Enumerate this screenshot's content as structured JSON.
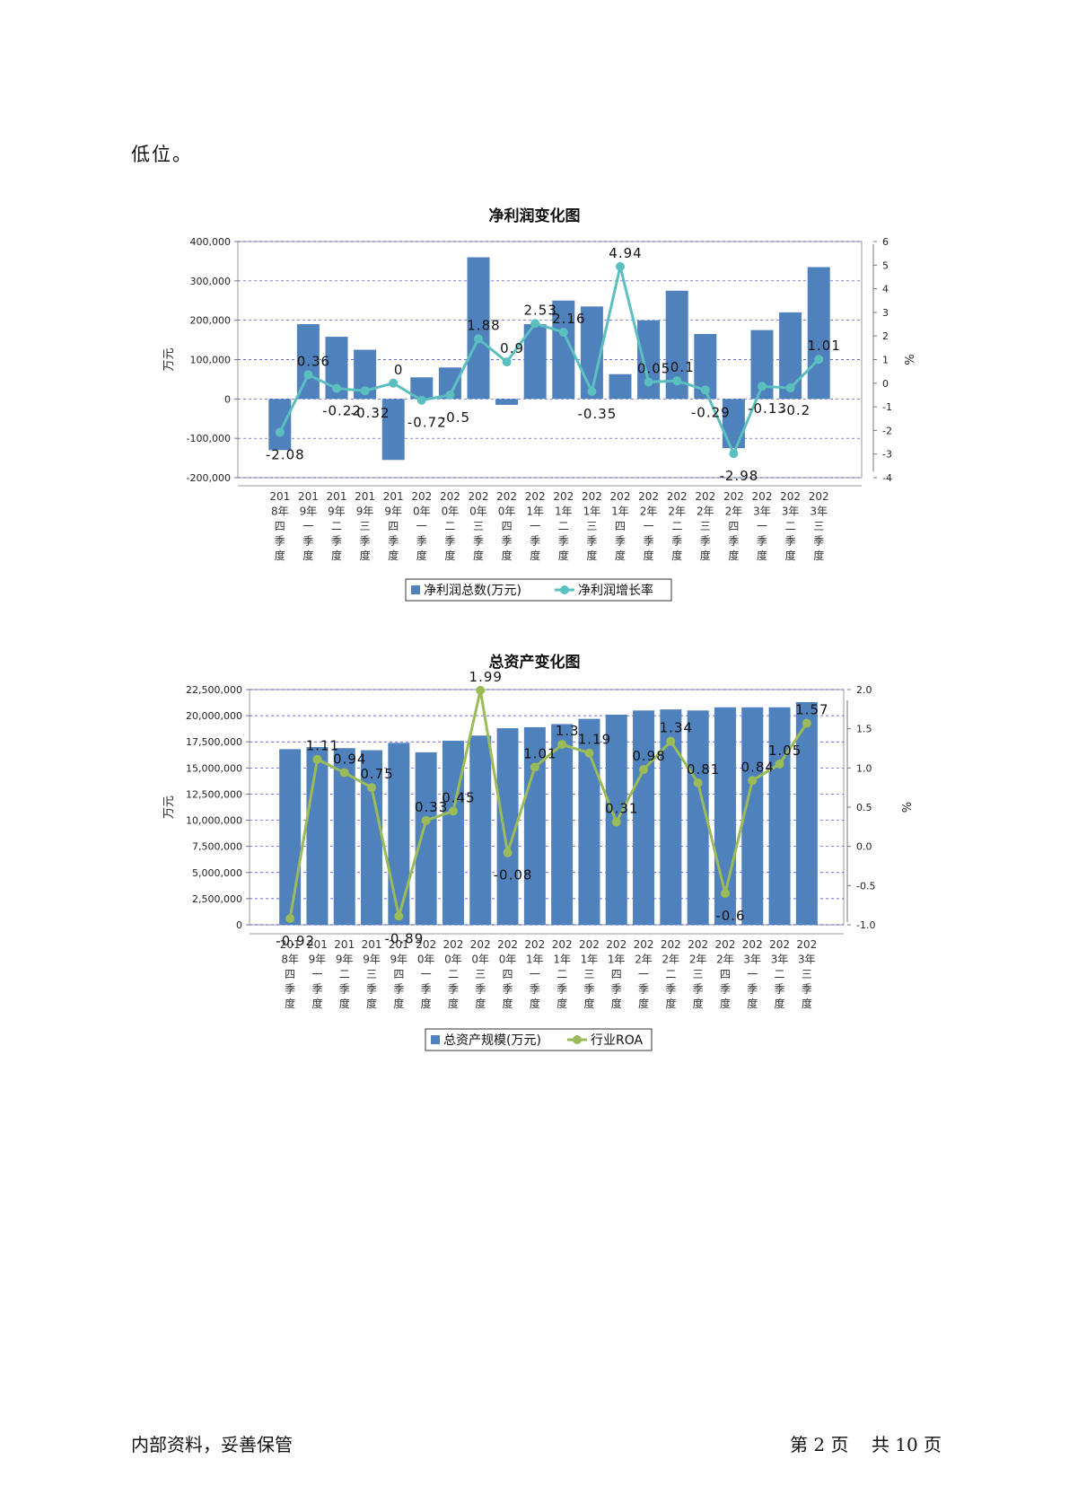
{
  "intro_text": "低位。",
  "footer": {
    "left": "内部资料，妥善保管",
    "page_label": "第 2 页",
    "total_label": "共 10 页"
  },
  "colors": {
    "bar": "#4f81bd",
    "line1": "#5bbfbf",
    "line2": "#9bbb59",
    "grid": "#3b3bd6"
  },
  "chart_data": [
    {
      "type": "bar",
      "title": "净利润变化图",
      "categories": [
        "2018年四季度",
        "2019年一季度",
        "2019年二季度",
        "2019年三季度",
        "2019年四季度",
        "2020年一季度",
        "2020年二季度",
        "2020年三季度",
        "2020年四季度",
        "2021年一季度",
        "2021年二季度",
        "2021年三季度",
        "2021年四季度",
        "2022年一季度",
        "2022年二季度",
        "2022年三季度",
        "2022年四季度",
        "2023年一季度",
        "2023年二季度",
        "2023年三季度"
      ],
      "tick_lines": [
        [
          "201",
          "8年",
          "四",
          "季",
          "度"
        ],
        [
          "201",
          "9年",
          "一",
          "季",
          "度"
        ],
        [
          "201",
          "9年",
          "二",
          "季",
          "度"
        ],
        [
          "201",
          "9年",
          "三",
          "季",
          "度"
        ],
        [
          "201",
          "9年",
          "四",
          "季",
          "度"
        ],
        [
          "202",
          "0年",
          "一",
          "季",
          "度"
        ],
        [
          "202",
          "0年",
          "二",
          "季",
          "度"
        ],
        [
          "202",
          "0年",
          "三",
          "季",
          "度"
        ],
        [
          "202",
          "0年",
          "四",
          "季",
          "度"
        ],
        [
          "202",
          "1年",
          "一",
          "季",
          "度"
        ],
        [
          "202",
          "1年",
          "二",
          "季",
          "度"
        ],
        [
          "202",
          "1年",
          "三",
          "季",
          "度"
        ],
        [
          "202",
          "1年",
          "四",
          "季",
          "度"
        ],
        [
          "202",
          "2年",
          "一",
          "季",
          "度"
        ],
        [
          "202",
          "2年",
          "二",
          "季",
          "度"
        ],
        [
          "202",
          "2年",
          "三",
          "季",
          "度"
        ],
        [
          "202",
          "2年",
          "四",
          "季",
          "度"
        ],
        [
          "202",
          "3年",
          "一",
          "季",
          "度"
        ],
        [
          "202",
          "3年",
          "二",
          "季",
          "度"
        ],
        [
          "202",
          "3年",
          "三",
          "季",
          "度"
        ]
      ],
      "series": [
        {
          "name": "净利润总数(万元)",
          "kind": "bar",
          "axis": "left",
          "values": [
            -130000,
            190000,
            158000,
            125000,
            -155000,
            55000,
            80000,
            360000,
            -15000,
            190000,
            250000,
            235000,
            63000,
            200000,
            275000,
            165000,
            -125000,
            175000,
            220000,
            335000
          ]
        },
        {
          "name": "净利润增长率",
          "kind": "line",
          "axis": "right",
          "values": [
            -2.08,
            0.36,
            -0.22,
            -0.32,
            0,
            -0.72,
            -0.5,
            1.88,
            0.9,
            2.53,
            2.16,
            -0.35,
            4.94,
            0.05,
            0.1,
            -0.29,
            -2.98,
            -0.13,
            -0.2,
            1.01
          ],
          "labels": [
            "-2.08",
            "0.36",
            "-0.22",
            "-0.32",
            "0",
            "-0.72",
            "-0.5",
            "1.88",
            "0.9",
            "2.53",
            "2.16",
            "-0.35",
            "4.94",
            "0.05",
            "0.1",
            "-0.29",
            "-2.98",
            "-0.13",
            "-0.2",
            "1.01"
          ]
        }
      ],
      "ylabel": "万元",
      "y2label": "%",
      "ylim": [
        -200000,
        400000
      ],
      "yticks": [
        -200000,
        -100000,
        0,
        100000,
        200000,
        300000,
        400000
      ],
      "ytick_labels": [
        "-200,000",
        "-100,000",
        "0",
        "100,000",
        "200,000",
        "300,000",
        "400,000"
      ],
      "y2lim": [
        -4,
        6
      ],
      "y2ticks": [
        -4,
        -3,
        -2,
        -1,
        0,
        1,
        2,
        3,
        4,
        5,
        6
      ],
      "y2tick_labels": [
        "-4",
        "-3",
        "-2",
        "-1",
        "0",
        "1",
        "2",
        "3",
        "4",
        "5",
        "6"
      ],
      "grid": true,
      "legend": "bottom-center"
    },
    {
      "type": "bar",
      "title": "总资产变化图",
      "categories": [
        "2018年四季度",
        "2019年一季度",
        "2019年二季度",
        "2019年三季度",
        "2019年四季度",
        "2020年一季度",
        "2020年二季度",
        "2020年三季度",
        "2020年四季度",
        "2021年一季度",
        "2021年二季度",
        "2021年三季度",
        "2021年四季度",
        "2022年一季度",
        "2022年二季度",
        "2022年三季度",
        "2022年四季度",
        "2023年一季度",
        "2023年二季度",
        "2023年三季度"
      ],
      "tick_lines": [
        [
          "201",
          "8年",
          "四",
          "季",
          "度"
        ],
        [
          "201",
          "9年",
          "一",
          "季",
          "度"
        ],
        [
          "201",
          "9年",
          "二",
          "季",
          "度"
        ],
        [
          "201",
          "9年",
          "三",
          "季",
          "度"
        ],
        [
          "201",
          "9年",
          "四",
          "季",
          "度"
        ],
        [
          "202",
          "0年",
          "一",
          "季",
          "度"
        ],
        [
          "202",
          "0年",
          "二",
          "季",
          "度"
        ],
        [
          "202",
          "0年",
          "三",
          "季",
          "度"
        ],
        [
          "202",
          "0年",
          "四",
          "季",
          "度"
        ],
        [
          "202",
          "1年",
          "一",
          "季",
          "度"
        ],
        [
          "202",
          "1年",
          "二",
          "季",
          "度"
        ],
        [
          "202",
          "1年",
          "三",
          "季",
          "度"
        ],
        [
          "202",
          "1年",
          "四",
          "季",
          "度"
        ],
        [
          "202",
          "2年",
          "一",
          "季",
          "度"
        ],
        [
          "202",
          "2年",
          "二",
          "季",
          "度"
        ],
        [
          "202",
          "2年",
          "三",
          "季",
          "度"
        ],
        [
          "202",
          "2年",
          "四",
          "季",
          "度"
        ],
        [
          "202",
          "3年",
          "一",
          "季",
          "度"
        ],
        [
          "202",
          "3年",
          "二",
          "季",
          "度"
        ],
        [
          "202",
          "3年",
          "三",
          "季",
          "度"
        ]
      ],
      "series": [
        {
          "name": "总资产规模(万元)",
          "kind": "bar",
          "axis": "left",
          "values": [
            16800000,
            17000000,
            16900000,
            16700000,
            17400000,
            16500000,
            17600000,
            18100000,
            18800000,
            18900000,
            19200000,
            19700000,
            20100000,
            20500000,
            20600000,
            20500000,
            20800000,
            20800000,
            20800000,
            21300000
          ]
        },
        {
          "name": "行业ROA",
          "kind": "line",
          "axis": "right",
          "values": [
            -0.92,
            1.11,
            0.94,
            0.75,
            -0.89,
            0.33,
            0.45,
            1.99,
            -0.08,
            1.01,
            1.3,
            1.19,
            0.31,
            0.98,
            1.34,
            0.81,
            -0.6,
            0.84,
            1.05,
            1.57
          ],
          "labels": [
            "-0.92",
            "1.11",
            "0.94",
            "0.75",
            "-0.89",
            "0.33",
            "0.45",
            "1.99",
            "-0.08",
            "1.01",
            "1.3",
            "1.19",
            "0.31",
            "0.98",
            "1.34",
            "0.81",
            "-0.6",
            "0.84",
            "1.05",
            "1.57"
          ]
        }
      ],
      "ylabel": "万元",
      "y2label": "%",
      "ylim": [
        0,
        22500000
      ],
      "yticks": [
        0,
        2500000,
        5000000,
        7500000,
        10000000,
        12500000,
        15000000,
        17500000,
        20000000,
        22500000
      ],
      "ytick_labels": [
        "0",
        "2,500,000",
        "5,000,000",
        "7,500,000",
        "10,000,000",
        "12,500,000",
        "15,000,000",
        "17,500,000",
        "20,000,000",
        "22,500,000"
      ],
      "y2lim": [
        -1.0,
        2.0
      ],
      "y2ticks": [
        -1.0,
        -0.5,
        0.0,
        0.5,
        1.0,
        1.5,
        2.0
      ],
      "y2tick_labels": [
        "-1.0",
        "-0.5",
        "0.0",
        "0.5",
        "1.0",
        "1.5",
        "2.0"
      ],
      "grid": true,
      "legend": "bottom-center"
    }
  ]
}
